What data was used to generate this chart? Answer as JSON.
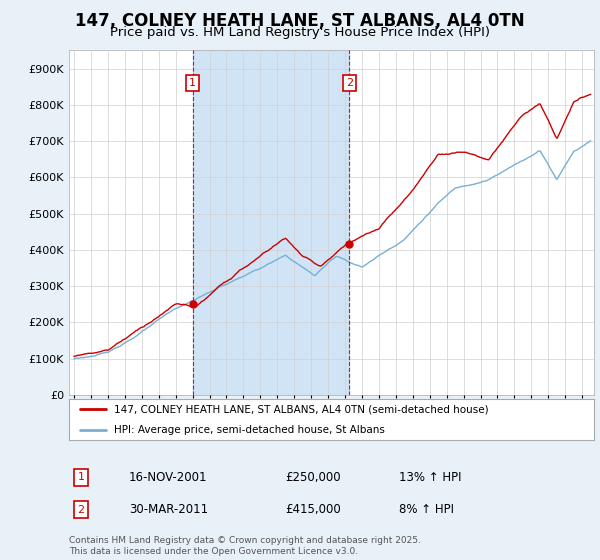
{
  "title": "147, COLNEY HEATH LANE, ST ALBANS, AL4 0TN",
  "subtitle": "Price paid vs. HM Land Registry's House Price Index (HPI)",
  "legend_line1": "147, COLNEY HEATH LANE, ST ALBANS, AL4 0TN (semi-detached house)",
  "legend_line2": "HPI: Average price, semi-detached house, St Albans",
  "footnote": "Contains HM Land Registry data © Crown copyright and database right 2025.\nThis data is licensed under the Open Government Licence v3.0.",
  "purchase1_label": "1",
  "purchase1_date": "16-NOV-2001",
  "purchase1_price": "£250,000",
  "purchase1_hpi": "13% ↑ HPI",
  "purchase2_label": "2",
  "purchase2_date": "30-MAR-2011",
  "purchase2_price": "£415,000",
  "purchase2_hpi": "8% ↑ HPI",
  "purchase1_x": 2002.0,
  "purchase1_y": 250000,
  "purchase2_x": 2011.25,
  "purchase2_y": 415000,
  "vline1_x": 2002.0,
  "vline2_x": 2011.25,
  "line_color": "#cc0000",
  "hpi_color": "#7aafd4",
  "vline_color": "#cc0000",
  "shade_color": "#d0e4f5",
  "background_color": "#e8f0f8",
  "plot_bg": "#ffffff",
  "ylim": [
    0,
    950000
  ],
  "xlim_start": 1994.7,
  "xlim_end": 2025.7,
  "title_fontsize": 12,
  "subtitle_fontsize": 10
}
